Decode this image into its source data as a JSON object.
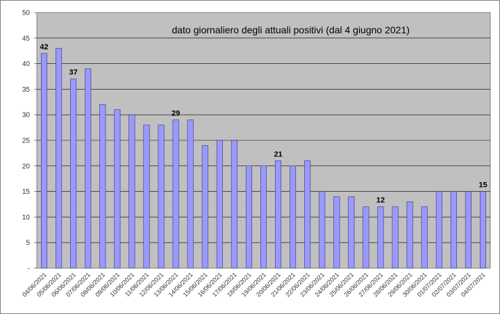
{
  "chart_data": {
    "type": "bar",
    "title": "dato giornaliero degli attuali positivi (dal 4 giugno 2021)",
    "xlabel": "",
    "ylabel": "",
    "ylim": [
      0,
      50
    ],
    "y_ticks": [
      "-",
      "5",
      "10",
      "15",
      "20",
      "25",
      "30",
      "35",
      "40",
      "45",
      "50"
    ],
    "grid": true,
    "legend": "none",
    "categories": [
      "04/06/2021",
      "05/06/2021",
      "06/06/2021",
      "07/06/2021",
      "08/06/2021",
      "09/06/2021",
      "10/06/2021",
      "11/06/2021",
      "12/06/2021",
      "13/06/2021",
      "14/06/2021",
      "15/06/2021",
      "16/06/2021",
      "17/06/2021",
      "18/06/2021",
      "19/06/2021",
      "20/06/2021",
      "21/06/2021",
      "22/06/2021",
      "23/06/2021",
      "24/06/2021",
      "25/06/2021",
      "26/06/2021",
      "27/06/2021",
      "28/06/2021",
      "29/06/2021",
      "30/06/2021",
      "01/07/2021",
      "02/07/2021",
      "03/07/2021",
      "04/07/2021"
    ],
    "values": [
      42,
      43,
      37,
      39,
      32,
      31,
      30,
      28,
      28,
      29,
      29,
      24,
      25,
      25,
      20,
      20,
      21,
      20,
      21,
      15,
      14,
      14,
      12,
      12,
      12,
      13,
      12,
      15,
      15,
      15,
      15
    ],
    "data_labels": [
      {
        "index": 0,
        "text": "42"
      },
      {
        "index": 2,
        "text": "37"
      },
      {
        "index": 9,
        "text": "29"
      },
      {
        "index": 16,
        "text": "21"
      },
      {
        "index": 23,
        "text": "12"
      },
      {
        "index": 30,
        "text": "15"
      }
    ],
    "colors": {
      "plot_background": "#c0c0c0",
      "bar_fill": "#9999ff",
      "bar_stroke": "#333366",
      "gridline": "#000000",
      "axis": "#808080"
    }
  }
}
